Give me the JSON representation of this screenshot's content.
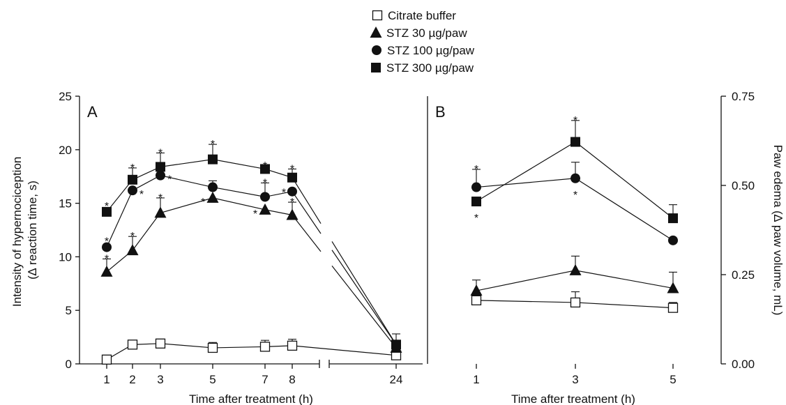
{
  "legend": [
    {
      "label": "Citrate buffer",
      "marker": "square-open"
    },
    {
      "label": "STZ 30 µg/paw",
      "marker": "triangle"
    },
    {
      "label": "STZ 100 µg/paw",
      "marker": "circle"
    },
    {
      "label": "STZ 300 µg/paw",
      "marker": "square"
    }
  ],
  "chart_data": [
    {
      "panel": "A",
      "type": "line",
      "xlabel": "Time after treatment (h)",
      "ylabel": "Intensity of hypernociception (∆ reaction time, s)",
      "ylim": [
        0,
        25
      ],
      "y_ticks": [
        0,
        5,
        10,
        15,
        20,
        25
      ],
      "x_ticks": [
        1,
        2,
        3,
        5,
        7,
        8,
        24
      ],
      "x_axis_break": [
        8,
        24
      ],
      "series": [
        {
          "name": "Citrate buffer",
          "marker": "square-open",
          "x": [
            1,
            2,
            3,
            5,
            7,
            8,
            24
          ],
          "y": [
            0.4,
            1.8,
            1.9,
            1.5,
            1.6,
            1.7,
            0.8
          ],
          "err": [
            0,
            0,
            0,
            0.5,
            0.6,
            0.6,
            0
          ],
          "sig": [
            false,
            false,
            false,
            false,
            false,
            false,
            false
          ]
        },
        {
          "name": "STZ 30 µg/paw",
          "marker": "triangle",
          "x": [
            1,
            2,
            3,
            5,
            7,
            8,
            24
          ],
          "y": [
            8.6,
            10.6,
            14.1,
            15.5,
            14.4,
            13.9,
            1.5
          ],
          "err": [
            1.2,
            1.3,
            1.4,
            0,
            0,
            1.2,
            0
          ],
          "sig": [
            true,
            true,
            true,
            true,
            true,
            true,
            false
          ]
        },
        {
          "name": "STZ 100 µg/paw",
          "marker": "circle",
          "x": [
            1,
            2,
            3,
            5,
            7,
            8,
            24
          ],
          "y": [
            10.9,
            16.2,
            17.6,
            16.5,
            15.6,
            16.1,
            1.8
          ],
          "err": [
            0,
            0,
            0,
            0.6,
            1.3,
            0,
            0
          ],
          "sig": [
            true,
            true,
            true,
            false,
            true,
            true,
            false
          ]
        },
        {
          "name": "STZ 300 µg/paw",
          "marker": "square",
          "x": [
            1,
            2,
            3,
            5,
            7,
            8,
            24
          ],
          "y": [
            14.2,
            17.2,
            18.4,
            19.1,
            18.2,
            17.4,
            1.8
          ],
          "err": [
            0,
            1.1,
            1.3,
            1.4,
            0.3,
            0.8,
            1.0
          ],
          "sig": [
            true,
            true,
            true,
            true,
            true,
            true,
            false
          ]
        }
      ]
    },
    {
      "panel": "B",
      "type": "line",
      "xlabel": "Time after treatment (h)",
      "ylabel": "Paw edema (∆ paw volume, mL)",
      "ylim": [
        0,
        0.75
      ],
      "y_ticks": [
        "0.00",
        "0.25",
        "0.50",
        "0.75"
      ],
      "x_ticks": [
        1,
        3,
        5
      ],
      "series": [
        {
          "name": "Citrate buffer",
          "marker": "square-open",
          "x": [
            1,
            3,
            5
          ],
          "y": [
            0.178,
            0.172,
            0.157
          ],
          "err": [
            0,
            0.03,
            0.015
          ],
          "sig": [
            false,
            false,
            false
          ]
        },
        {
          "name": "STZ 30 µg/paw",
          "marker": "triangle",
          "x": [
            1,
            3,
            5
          ],
          "y": [
            0.205,
            0.262,
            0.212
          ],
          "err": [
            0.03,
            0.04,
            0.045
          ],
          "sig": [
            false,
            false,
            false
          ]
        },
        {
          "name": "STZ 100 µg/paw",
          "marker": "circle",
          "x": [
            1,
            3,
            5
          ],
          "y": [
            0.495,
            0.52,
            0.346
          ],
          "err": [
            0.05,
            0.045,
            0
          ],
          "sig": [
            true,
            true,
            false
          ]
        },
        {
          "name": "STZ 300 µg/paw",
          "marker": "square",
          "x": [
            1,
            3,
            5
          ],
          "y": [
            0.455,
            0.622,
            0.408
          ],
          "err": [
            0,
            0.06,
            0.038
          ],
          "sig": [
            true,
            true,
            false
          ]
        }
      ]
    }
  ]
}
